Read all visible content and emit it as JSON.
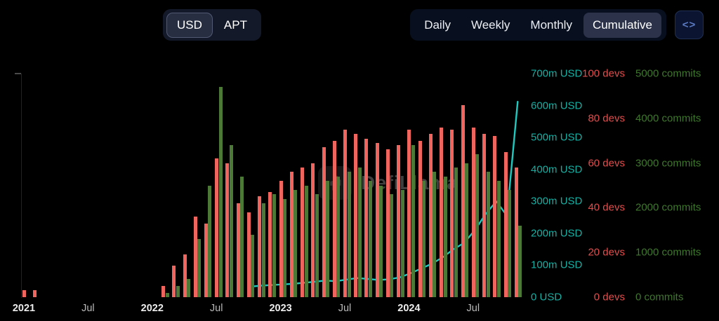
{
  "controls": {
    "currency": {
      "options": [
        {
          "label": "USD",
          "selected": true
        },
        {
          "label": "APT",
          "selected": false
        }
      ]
    },
    "interval": {
      "options": [
        {
          "label": "Daily",
          "selected": false
        },
        {
          "label": "Weekly",
          "selected": false
        },
        {
          "label": "Monthly",
          "selected": false
        },
        {
          "label": "Cumulative",
          "selected": true
        }
      ]
    },
    "embed": {
      "glyph": "<>"
    }
  },
  "watermark": {
    "text": "DefiLlama"
  },
  "chart_data": {
    "type": "bar",
    "note": "monthly dev activity bars (devs, commits) with cumulative USD line",
    "months": [
      "2021-01",
      "2021-02",
      "2021-03",
      "2021-04",
      "2021-05",
      "2021-06",
      "2021-07",
      "2021-08",
      "2021-09",
      "2021-10",
      "2021-11",
      "2021-12",
      "2022-01",
      "2022-02",
      "2022-03",
      "2022-04",
      "2022-05",
      "2022-06",
      "2022-07",
      "2022-08",
      "2022-09",
      "2022-10",
      "2022-11",
      "2022-12",
      "2023-01",
      "2023-02",
      "2023-03",
      "2023-04",
      "2023-05",
      "2023-06",
      "2023-07",
      "2023-08",
      "2023-09",
      "2023-10",
      "2023-11",
      "2023-12",
      "2024-01",
      "2024-02",
      "2024-03",
      "2024-04",
      "2024-05",
      "2024-06",
      "2024-07",
      "2024-08",
      "2024-09",
      "2024-10",
      "2024-11"
    ],
    "x_ticks": [
      {
        "index": 0,
        "label": "2021",
        "year": true
      },
      {
        "index": 6,
        "label": "Jul",
        "year": false
      },
      {
        "index": 12,
        "label": "2022",
        "year": true
      },
      {
        "index": 18,
        "label": "Jul",
        "year": false
      },
      {
        "index": 24,
        "label": "2023",
        "year": true
      },
      {
        "index": 30,
        "label": "Jul",
        "year": false
      },
      {
        "index": 36,
        "label": "2024",
        "year": true
      },
      {
        "index": 42,
        "label": "Jul",
        "year": false
      }
    ],
    "series": [
      {
        "name": "devs",
        "type": "bar",
        "axis": "devs",
        "color": "#f0655d",
        "values": [
          3,
          3,
          0,
          0,
          0,
          0,
          0,
          0,
          0,
          0,
          0,
          0,
          0,
          5,
          14,
          19,
          36,
          33,
          62,
          60,
          42,
          38,
          45,
          47,
          52,
          56,
          58,
          60,
          67,
          70,
          75,
          73,
          71,
          69,
          66,
          68,
          75,
          70,
          73,
          76,
          75,
          86,
          76,
          73,
          72,
          65,
          58
        ]
      },
      {
        "name": "commits",
        "type": "bar",
        "axis": "commits",
        "color": "#4c7a36",
        "values": [
          0,
          0,
          0,
          0,
          0,
          0,
          0,
          0,
          0,
          0,
          0,
          0,
          0,
          100,
          250,
          400,
          1300,
          2500,
          4700,
          3400,
          2700,
          1400,
          2100,
          2300,
          2200,
          2400,
          2500,
          2300,
          2600,
          2700,
          2800,
          2900,
          2600,
          2500,
          2300,
          2400,
          3400,
          2600,
          2800,
          2700,
          2900,
          3000,
          3200,
          2800,
          2600,
          2400,
          1600
        ]
      },
      {
        "name": "cumulative_usd_millions",
        "type": "line",
        "axis": "usd",
        "color": "#1fc9c0",
        "values": [
          null,
          null,
          null,
          null,
          null,
          null,
          null,
          null,
          null,
          null,
          null,
          null,
          null,
          null,
          null,
          null,
          null,
          null,
          null,
          null,
          null,
          33,
          36,
          38,
          40,
          42,
          45,
          48,
          52,
          50,
          55,
          60,
          57,
          54,
          56,
          62,
          75,
          90,
          105,
          125,
          150,
          170,
          210,
          260,
          300,
          255,
          612
        ]
      }
    ],
    "axes": {
      "usd": {
        "position": "right",
        "color": "#14b0a4",
        "max": 700,
        "min": 0,
        "ticks": [
          "700m USD",
          "600m USD",
          "500m USD",
          "400m USD",
          "300m USD",
          "200m USD",
          "100m USD",
          "0 USD"
        ]
      },
      "devs": {
        "position": "right",
        "color": "#e24d4d",
        "max": 100,
        "min": 0,
        "ticks": [
          "100 devs",
          "80 devs",
          "60 devs",
          "40 devs",
          "20 devs",
          "0 devs"
        ]
      },
      "commits": {
        "position": "right",
        "color": "#3f772e",
        "max": 5000,
        "min": 0,
        "ticks": [
          "5000 commits",
          "4000 commits",
          "3000 commits",
          "2000 commits",
          "1000 commits",
          "0 commits"
        ]
      }
    },
    "legend": "none",
    "grid": false
  }
}
